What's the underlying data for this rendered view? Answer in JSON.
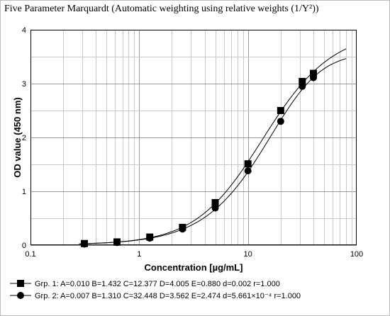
{
  "title": "Five Parameter Marquardt (Automatic weighting using relative weights (1/Y²))",
  "chart_data": {
    "type": "scatter",
    "xscale": "log",
    "xlim": [
      0.1,
      100
    ],
    "ylim": [
      0,
      4
    ],
    "xticks": [
      0.1,
      1,
      10,
      100
    ],
    "xtick_labels": [
      "0.1",
      "1",
      "10",
      "100"
    ],
    "yticks": [
      0,
      1,
      2,
      3,
      4
    ],
    "ytick_labels": [
      "0",
      "1",
      "2",
      "3",
      "4"
    ],
    "xlabel": "Concentration [µg/mL]",
    "ylabel": "OD value (450 nm)",
    "grid": true,
    "legend_position": "bottom-left",
    "series": [
      {
        "name": "Grp. 1:",
        "marker": "square",
        "legend_text": "A=0.010 B=1.432 C=12.377 D=4.005 E=0.880 d=0.002 r=1.000",
        "params": {
          "A": 0.01,
          "B": 1.432,
          "C": 12.377,
          "D": 4.005,
          "E": 0.88
        },
        "x": [
          0.313,
          0.625,
          1.25,
          2.5,
          5,
          10,
          20,
          31.6,
          40
        ],
        "y": [
          0.03,
          0.06,
          0.15,
          0.33,
          0.79,
          1.51,
          2.5,
          3.04,
          3.19
        ]
      },
      {
        "name": "Grp. 2:",
        "marker": "circle",
        "legend_text": "A=0.007 B=1.310 C=32.448 D=3.562 E=2.474 d=5.661×10⁻⁴ r=1.000",
        "params": {
          "A": 0.007,
          "B": 1.31,
          "C": 32.448,
          "D": 3.562,
          "E": 2.474
        },
        "x": [
          0.313,
          0.625,
          1.25,
          2.5,
          5,
          10,
          20,
          31.6,
          40
        ],
        "y": [
          0.02,
          0.05,
          0.13,
          0.3,
          0.69,
          1.38,
          2.3,
          2.95,
          3.11
        ]
      }
    ]
  }
}
